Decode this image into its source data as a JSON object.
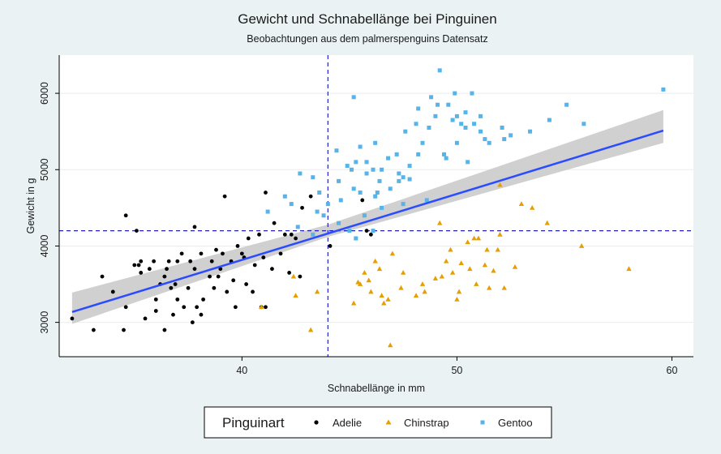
{
  "chart_data": {
    "type": "scatter",
    "title": "Gewicht und Schnabellänge bei Pinguinen",
    "subtitle": "Beobachtungen aus dem palmerspenguins Datensatz",
    "xlabel": "Schnabellänge in mm",
    "ylabel": "Gewicht in g",
    "xlim": [
      31.5,
      61
    ],
    "ylim": [
      2550,
      6500
    ],
    "xticks": [
      40,
      50,
      60
    ],
    "yticks": [
      3000,
      4000,
      5000,
      6000
    ],
    "grid": "horizontal",
    "legend_position": "bottom",
    "legend_title": "Pinguinart",
    "reference_lines": {
      "x": 44,
      "y": 4200
    },
    "regression": {
      "x_range": [
        32.1,
        59.6
      ],
      "intercept": 362,
      "slope": 86.4,
      "band": [
        [
          32.1,
          2980,
          3390
        ],
        [
          44,
          4120,
          4280
        ],
        [
          59.6,
          5350,
          5780
        ]
      ]
    },
    "colors": {
      "Adelie": "#000000",
      "Chinstrap": "#e69f00",
      "Gentoo": "#56b4e9",
      "regression": "#2b4bff",
      "band": "#c8c8c8",
      "reference": "#2222bb",
      "plot_bg": "#ffffff",
      "grid": "#e6eef0"
    },
    "series": [
      {
        "name": "Adelie",
        "marker": "circle",
        "points": [
          [
            32.1,
            3050
          ],
          [
            33.1,
            2900
          ],
          [
            33.5,
            3600
          ],
          [
            34.0,
            3400
          ],
          [
            34.5,
            2900
          ],
          [
            34.6,
            4400
          ],
          [
            34.6,
            3200
          ],
          [
            35.0,
            3750
          ],
          [
            35.1,
            4200
          ],
          [
            35.2,
            3750
          ],
          [
            35.3,
            3800
          ],
          [
            35.5,
            3050
          ],
          [
            35.7,
            3700
          ],
          [
            35.9,
            3800
          ],
          [
            36.0,
            3300
          ],
          [
            36.0,
            3150
          ],
          [
            36.2,
            3500
          ],
          [
            36.4,
            3600
          ],
          [
            36.4,
            2900
          ],
          [
            36.5,
            3700
          ],
          [
            36.6,
            3800
          ],
          [
            36.7,
            3450
          ],
          [
            36.8,
            3100
          ],
          [
            37.0,
            3800
          ],
          [
            37.0,
            3300
          ],
          [
            37.3,
            3200
          ],
          [
            37.5,
            3450
          ],
          [
            37.6,
            3800
          ],
          [
            37.7,
            3000
          ],
          [
            37.8,
            3700
          ],
          [
            37.8,
            4250
          ],
          [
            37.9,
            3200
          ],
          [
            38.1,
            3100
          ],
          [
            38.1,
            3900
          ],
          [
            38.2,
            3300
          ],
          [
            38.5,
            3600
          ],
          [
            38.6,
            3800
          ],
          [
            38.7,
            3450
          ],
          [
            38.8,
            3950
          ],
          [
            39.0,
            3700
          ],
          [
            39.1,
            3900
          ],
          [
            39.2,
            4650
          ],
          [
            39.5,
            3800
          ],
          [
            39.6,
            3550
          ],
          [
            39.7,
            3200
          ],
          [
            39.8,
            4000
          ],
          [
            40.0,
            3900
          ],
          [
            40.2,
            3500
          ],
          [
            40.3,
            4100
          ],
          [
            40.5,
            3400
          ],
          [
            40.6,
            3750
          ],
          [
            40.8,
            4150
          ],
          [
            40.9,
            3200
          ],
          [
            41.0,
            3850
          ],
          [
            41.1,
            4700
          ],
          [
            41.1,
            3200
          ],
          [
            41.4,
            3700
          ],
          [
            41.5,
            4300
          ],
          [
            41.8,
            3900
          ],
          [
            42.0,
            4150
          ],
          [
            42.2,
            3650
          ],
          [
            42.3,
            4150
          ],
          [
            42.5,
            4100
          ],
          [
            42.7,
            3600
          ],
          [
            42.8,
            4500
          ],
          [
            43.2,
            4650
          ],
          [
            44.1,
            4000
          ],
          [
            45.6,
            4600
          ],
          [
            45.8,
            4200
          ],
          [
            46.0,
            4150
          ],
          [
            35.3,
            3650
          ],
          [
            36.9,
            3500
          ],
          [
            37.2,
            3900
          ],
          [
            38.9,
            3600
          ],
          [
            39.3,
            3400
          ],
          [
            40.1,
            3850
          ]
        ]
      },
      {
        "name": "Chinstrap",
        "marker": "triangle",
        "points": [
          [
            40.9,
            3200
          ],
          [
            42.4,
            3600
          ],
          [
            42.5,
            3350
          ],
          [
            43.2,
            2900
          ],
          [
            43.5,
            3400
          ],
          [
            45.2,
            3250
          ],
          [
            45.4,
            3525
          ],
          [
            45.5,
            3500
          ],
          [
            45.7,
            3650
          ],
          [
            46.0,
            3400
          ],
          [
            46.2,
            3800
          ],
          [
            46.4,
            3700
          ],
          [
            46.5,
            3350
          ],
          [
            46.6,
            3250
          ],
          [
            46.8,
            3300
          ],
          [
            46.9,
            2700
          ],
          [
            47.0,
            3900
          ],
          [
            47.5,
            3650
          ],
          [
            48.1,
            3350
          ],
          [
            48.5,
            3400
          ],
          [
            49.0,
            3575
          ],
          [
            49.2,
            4300
          ],
          [
            49.5,
            3800
          ],
          [
            49.7,
            3950
          ],
          [
            50.0,
            3300
          ],
          [
            50.1,
            3400
          ],
          [
            50.2,
            3775
          ],
          [
            50.5,
            4050
          ],
          [
            50.6,
            3700
          ],
          [
            50.8,
            4100
          ],
          [
            51.0,
            4100
          ],
          [
            51.3,
            3750
          ],
          [
            51.5,
            3450
          ],
          [
            51.7,
            3675
          ],
          [
            52.0,
            4800
          ],
          [
            52.2,
            3450
          ],
          [
            52.7,
            3725
          ],
          [
            53.5,
            4500
          ],
          [
            54.2,
            4300
          ],
          [
            55.8,
            4000
          ],
          [
            58.0,
            3700
          ],
          [
            49.8,
            3650
          ],
          [
            51.4,
            3950
          ],
          [
            50.9,
            3500
          ],
          [
            48.4,
            3500
          ],
          [
            45.9,
            3550
          ],
          [
            47.4,
            3450
          ],
          [
            52.0,
            4150
          ],
          [
            53.0,
            4550
          ],
          [
            51.9,
            3950
          ],
          [
            49.3,
            3600
          ]
        ]
      },
      {
        "name": "Gentoo",
        "marker": "square",
        "points": [
          [
            42.7,
            4950
          ],
          [
            43.3,
            4900
          ],
          [
            43.5,
            4450
          ],
          [
            43.6,
            4700
          ],
          [
            43.8,
            4400
          ],
          [
            44.0,
            4550
          ],
          [
            44.4,
            5250
          ],
          [
            44.5,
            4850
          ],
          [
            44.9,
            5050
          ],
          [
            45.1,
            5000
          ],
          [
            45.2,
            4750
          ],
          [
            45.3,
            5100
          ],
          [
            45.5,
            5300
          ],
          [
            45.8,
            4950
          ],
          [
            46.1,
            5000
          ],
          [
            46.2,
            4650
          ],
          [
            46.4,
            4850
          ],
          [
            46.5,
            5000
          ],
          [
            46.8,
            5150
          ],
          [
            47.2,
            5200
          ],
          [
            47.3,
            4950
          ],
          [
            47.5,
            4900
          ],
          [
            47.8,
            5050
          ],
          [
            48.2,
            5200
          ],
          [
            48.4,
            5350
          ],
          [
            48.7,
            5550
          ],
          [
            49.0,
            5700
          ],
          [
            49.1,
            5850
          ],
          [
            49.5,
            5150
          ],
          [
            49.8,
            5650
          ],
          [
            50.0,
            5700
          ],
          [
            50.2,
            5600
          ],
          [
            50.4,
            5550
          ],
          [
            50.5,
            5100
          ],
          [
            50.8,
            5600
          ],
          [
            51.1,
            5700
          ],
          [
            51.3,
            5400
          ],
          [
            51.5,
            5350
          ],
          [
            52.1,
            5550
          ],
          [
            52.2,
            5400
          ],
          [
            52.5,
            5450
          ],
          [
            53.4,
            5500
          ],
          [
            54.3,
            5650
          ],
          [
            55.1,
            5850
          ],
          [
            55.9,
            5600
          ],
          [
            59.6,
            6050
          ],
          [
            45.2,
            5950
          ],
          [
            49.2,
            6300
          ],
          [
            47.6,
            5500
          ],
          [
            46.3,
            4700
          ],
          [
            44.6,
            4600
          ],
          [
            48.8,
            5950
          ],
          [
            50.7,
            6000
          ],
          [
            45.7,
            4400
          ],
          [
            47.3,
            4850
          ],
          [
            46.9,
            4750
          ],
          [
            49.6,
            5850
          ],
          [
            45.0,
            4200
          ],
          [
            46.1,
            4200
          ],
          [
            43.3,
            4150
          ],
          [
            42.6,
            4250
          ],
          [
            42.0,
            4650
          ],
          [
            41.2,
            4450
          ],
          [
            42.3,
            4550
          ],
          [
            44.5,
            4300
          ],
          [
            46.5,
            4500
          ],
          [
            45.5,
            4700
          ],
          [
            48.2,
            5800
          ],
          [
            50.4,
            5750
          ],
          [
            49.9,
            6000
          ],
          [
            51.1,
            5500
          ],
          [
            48.6,
            4600
          ],
          [
            47.5,
            4550
          ],
          [
            47.8,
            4875
          ],
          [
            46.2,
            5350
          ],
          [
            45.3,
            4100
          ],
          [
            45.8,
            5100
          ],
          [
            48.1,
            5600
          ],
          [
            49.4,
            5200
          ],
          [
            50.0,
            5350
          ]
        ]
      }
    ]
  }
}
